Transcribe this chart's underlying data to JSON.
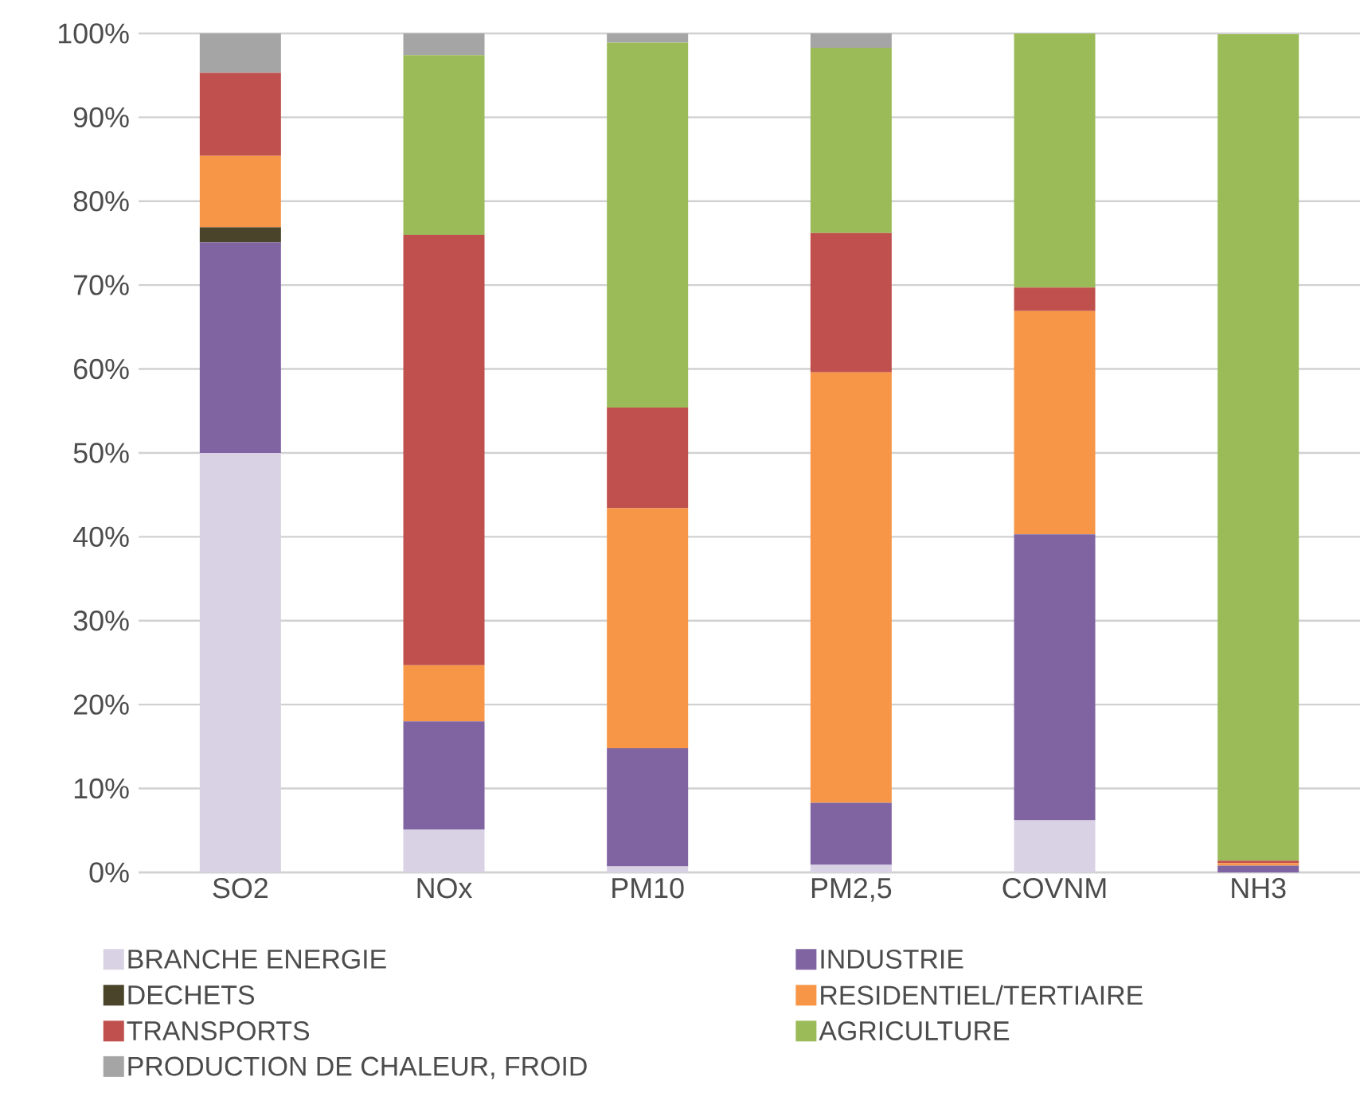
{
  "chart_data": {
    "type": "bar",
    "stacked": true,
    "categories": [
      "SO2",
      "NOx",
      "PM10",
      "PM2,5",
      "COVNM",
      "NH3"
    ],
    "series": [
      {
        "name": "BRANCHE ENERGIE",
        "color": "#d9d1e4",
        "values": [
          50.0,
          5.1,
          0.7,
          0.9,
          6.2,
          null
        ]
      },
      {
        "name": "INDUSTRIE",
        "color": "#8064a2",
        "values": [
          25.1,
          12.9,
          14.1,
          7.4,
          34.1,
          0.8
        ]
      },
      {
        "name": "DECHETS",
        "color": "#4a452a",
        "values": [
          1.8,
          0,
          0,
          0,
          0,
          0
        ]
      },
      {
        "name": "RESIDENTIEL/TERTIAIRE",
        "color": "#f79646",
        "values": [
          8.5,
          6.7,
          28.6,
          51.3,
          26.6,
          0.3
        ]
      },
      {
        "name": "TRANSPORTS",
        "color": "#c0504d",
        "values": [
          9.9,
          51.3,
          12.0,
          16.6,
          2.8,
          0.3
        ]
      },
      {
        "name": "AGRICULTURE",
        "color": "#9bbb59",
        "values": [
          0,
          21.4,
          43.5,
          22.1,
          30.3,
          98.5
        ]
      },
      {
        "name": "PRODUCTION DE CHALEUR, FROID",
        "color": "#a5a5a5",
        "values": [
          4.7,
          2.6,
          1.1,
          1.7,
          0,
          0
        ]
      }
    ],
    "ylim": [
      0,
      100
    ],
    "yticks": [
      {
        "value": 0,
        "label": "0%"
      },
      {
        "value": 10,
        "label": "10%"
      },
      {
        "value": 20,
        "label": "20%"
      },
      {
        "value": 30,
        "label": "30%"
      },
      {
        "value": 40,
        "label": "40%"
      },
      {
        "value": 50,
        "label": "50%"
      },
      {
        "value": 60,
        "label": "60%"
      },
      {
        "value": 70,
        "label": "70%"
      },
      {
        "value": 80,
        "label": "80%"
      },
      {
        "value": 90,
        "label": "90%"
      },
      {
        "value": 100,
        "label": "100%"
      }
    ],
    "grid": "y",
    "legend": "bottom"
  }
}
